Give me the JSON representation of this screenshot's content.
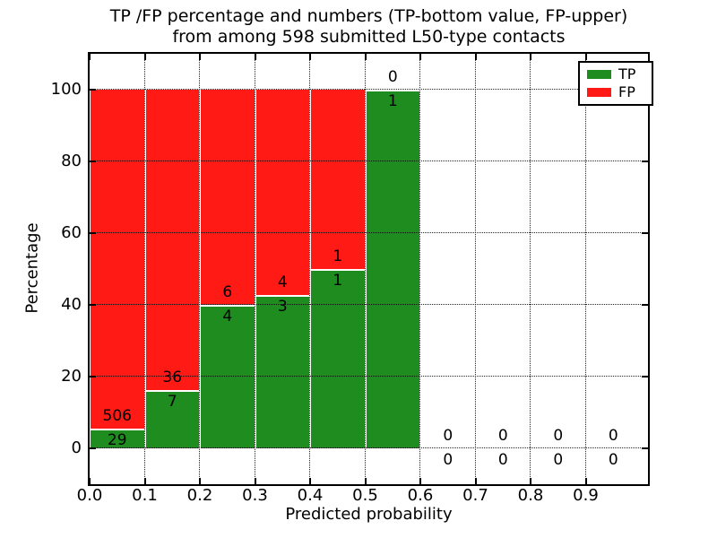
{
  "figure": {
    "title_line1": "TP /FP percentage and numbers (TP-bottom value, FP-upper)",
    "title_line2": "from among 598 submitted L50-type contacts",
    "xlabel": "Predicted probability",
    "ylabel": "Percentage",
    "legend": {
      "tp_label": "TP",
      "fp_label": "FP"
    },
    "colors": {
      "tp_green": "#1e8c1e",
      "fp_red": "#ff1a15",
      "text": "#000000",
      "background": "#ffffff"
    }
  },
  "chart_data": {
    "type": "bar",
    "stacked": true,
    "title": "TP /FP percentage and numbers (TP-bottom value, FP-upper) from among 598 submitted L50-type contacts",
    "xlabel": "Predicted probability",
    "ylabel": "Percentage",
    "total_contacts": 598,
    "xlim": [
      0.0,
      1.013
    ],
    "ylim": [
      -10,
      110
    ],
    "xticks": [
      0.0,
      0.1,
      0.2,
      0.3,
      0.4,
      0.5,
      0.6,
      0.7,
      0.8,
      0.9
    ],
    "xtick_labels": [
      "0.0",
      "0.1",
      "0.2",
      "0.3",
      "0.4",
      "0.5",
      "0.6",
      "0.7",
      "0.8",
      "0.9"
    ],
    "yticks": [
      0,
      20,
      40,
      60,
      80,
      100
    ],
    "ytick_labels": [
      "0",
      "20",
      "40",
      "60",
      "80",
      "100"
    ],
    "grid": "dotted, drawn over bars",
    "legend_position": "upper right",
    "bin_width": 0.1,
    "bins": [
      {
        "range": [
          0.0,
          0.1
        ],
        "tp_count": 29,
        "fp_count": 506,
        "tp_pct": 5.42,
        "fp_pct": 94.58
      },
      {
        "range": [
          0.1,
          0.2
        ],
        "tp_count": 7,
        "fp_count": 36,
        "tp_pct": 16.28,
        "fp_pct": 83.72
      },
      {
        "range": [
          0.2,
          0.3
        ],
        "tp_count": 4,
        "fp_count": 6,
        "tp_pct": 40.0,
        "fp_pct": 60.0
      },
      {
        "range": [
          0.3,
          0.4
        ],
        "tp_count": 3,
        "fp_count": 4,
        "tp_pct": 42.86,
        "fp_pct": 57.14
      },
      {
        "range": [
          0.4,
          0.5
        ],
        "tp_count": 1,
        "fp_count": 1,
        "tp_pct": 50.0,
        "fp_pct": 50.0
      },
      {
        "range": [
          0.5,
          0.6
        ],
        "tp_count": 1,
        "fp_count": 0,
        "tp_pct": 100.0,
        "fp_pct": 0.0
      },
      {
        "range": [
          0.6,
          0.7
        ],
        "tp_count": 0,
        "fp_count": 0,
        "tp_pct": 0.0,
        "fp_pct": 0.0
      },
      {
        "range": [
          0.7,
          0.8
        ],
        "tp_count": 0,
        "fp_count": 0,
        "tp_pct": 0.0,
        "fp_pct": 0.0
      },
      {
        "range": [
          0.8,
          0.9
        ],
        "tp_count": 0,
        "fp_count": 0,
        "tp_pct": 0.0,
        "fp_pct": 0.0
      },
      {
        "range": [
          0.9,
          1.0
        ],
        "tp_count": 0,
        "fp_count": 0,
        "tp_pct": 0.0,
        "fp_pct": 0.0
      }
    ],
    "series": [
      {
        "name": "TP",
        "color": "#1e8c1e",
        "counts": [
          29,
          7,
          4,
          3,
          1,
          1,
          0,
          0,
          0,
          0
        ]
      },
      {
        "name": "FP",
        "color": "#ff1a15",
        "counts": [
          506,
          36,
          6,
          4,
          1,
          0,
          0,
          0,
          0,
          0
        ]
      }
    ]
  }
}
